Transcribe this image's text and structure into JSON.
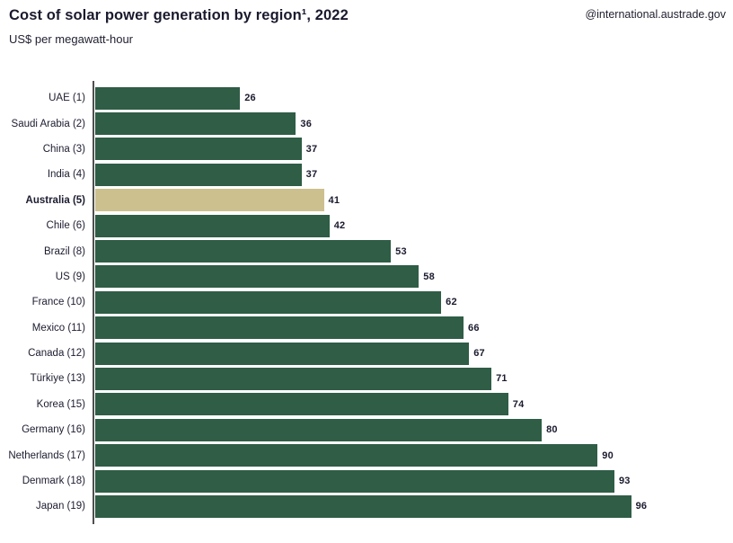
{
  "header": {
    "title": "Cost of solar power generation by region¹, 2022",
    "subtitle": "US$ per megawatt-hour",
    "handle": "@international.austrade.gov"
  },
  "colors": {
    "bar": "#2F5D46",
    "highlight": "#CDC08F",
    "text": "#1A1A2E",
    "axis": "#4F4F4F"
  },
  "chart_data": {
    "type": "bar",
    "orientation": "horizontal",
    "title": "Cost of solar power generation by region¹, 2022",
    "subtitle": "US$ per megawatt-hour",
    "unit": "US$ per megawatt-hour",
    "categories": [
      "UAE (1)",
      "Saudi Arabia (2)",
      "China (3)",
      "India (4)",
      "Australia (5)",
      "Chile (6)",
      "Brazil (8)",
      "US (9)",
      "France (10)",
      "Mexico (11)",
      "Canada (12)",
      "Türkiye (13)",
      "Korea (15)",
      "Germany (16)",
      "Netherlands (17)",
      "Denmark (18)",
      "Japan (19)"
    ],
    "values": [
      26,
      36,
      37,
      37,
      41,
      42,
      53,
      58,
      62,
      66,
      67,
      71,
      74,
      80,
      90,
      93,
      96
    ],
    "highlight_category": "Australia (5)",
    "highlight_index": 4,
    "xlim": [
      0,
      96
    ],
    "grid": false,
    "legend": false,
    "value_labels": true
  }
}
